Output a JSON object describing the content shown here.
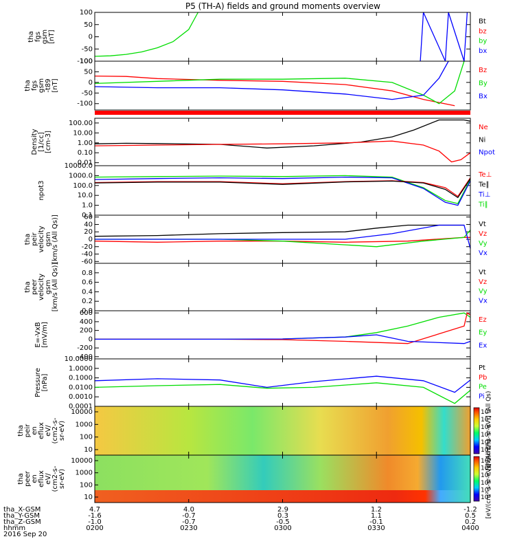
{
  "title": "P5 (TH-A) fields and ground moments overview",
  "time_axis": {
    "rows": [
      {
        "label": "tha_X-GSM",
        "values": [
          "4.7",
          "4.0",
          "2.9",
          "1.2",
          "-1.2"
        ]
      },
      {
        "label": "tha_Y-GSM",
        "values": [
          "-1.6",
          "-0.7",
          "0.3",
          "1.1",
          "0.5"
        ]
      },
      {
        "label": "tha_Z-GSM",
        "values": [
          "-1.0",
          "-0.7",
          "-0.5",
          "-0.1",
          "0.2"
        ]
      },
      {
        "label": "hhmm",
        "values": [
          "0200",
          "0230",
          "0300",
          "0330",
          "0400"
        ]
      }
    ],
    "date": "2016 Sep 20"
  },
  "chart_data": [
    {
      "type": "line",
      "ylabel": [
        "tha",
        "fgs",
        "gsm",
        "[nT]"
      ],
      "yticks": [
        "100",
        "50",
        "0",
        "-50",
        "-100"
      ],
      "ylim": [
        -100,
        100
      ],
      "legend": [
        {
          "label": "Bt",
          "color": "#000000"
        },
        {
          "label": "bz",
          "color": "#ff0000"
        },
        {
          "label": "by",
          "color": "#00dd00"
        },
        {
          "label": "bx",
          "color": "#0000ff"
        }
      ],
      "series": [
        {
          "name": "by",
          "x": [
            "02:00",
            "02:05",
            "02:10",
            "02:15",
            "02:20",
            "02:25",
            "02:30",
            "02:33"
          ],
          "values": [
            -80,
            -78,
            -72,
            -62,
            -45,
            -20,
            30,
            100
          ]
        },
        {
          "name": "bx",
          "x": [
            "03:44",
            "03:45",
            "03:52",
            "03:53",
            "03:58",
            "03:59"
          ],
          "values": [
            -100,
            100,
            -100,
            100,
            -100,
            100
          ]
        }
      ]
    },
    {
      "type": "line",
      "ylabel": [
        "tha",
        "fgs",
        "gsm",
        "-t89",
        "[nT]"
      ],
      "yticks": [
        "100",
        "50",
        "0",
        "-50",
        "-100"
      ],
      "ylim": [
        -130,
        100
      ],
      "legend": [
        {
          "label": "Bz",
          "color": "#ff0000"
        },
        {
          "label": "By",
          "color": "#00dd00"
        },
        {
          "label": "Bx",
          "color": "#0000ff"
        }
      ],
      "series": [
        {
          "name": "Bz",
          "x": [
            "02:00",
            "02:10",
            "02:20",
            "02:40",
            "03:00",
            "03:20",
            "03:35",
            "03:45",
            "03:55"
          ],
          "values": [
            30,
            28,
            18,
            10,
            5,
            -10,
            -40,
            -80,
            -110
          ]
        },
        {
          "name": "By",
          "x": [
            "02:00",
            "02:20",
            "02:40",
            "03:00",
            "03:20",
            "03:35",
            "03:45",
            "03:50",
            "03:55",
            "03:58"
          ],
          "values": [
            -5,
            5,
            15,
            15,
            20,
            0,
            -60,
            -100,
            -40,
            100
          ]
        },
        {
          "name": "Bx",
          "x": [
            "02:00",
            "02:20",
            "02:40",
            "03:00",
            "03:20",
            "03:35",
            "03:45",
            "03:50",
            "03:53"
          ],
          "values": [
            -20,
            -25,
            -25,
            -35,
            -55,
            -80,
            -60,
            20,
            100
          ]
        }
      ]
    },
    {
      "type": "line",
      "scale": "log",
      "ylabel": [
        "Density",
        "[1/cc]",
        "[cm-3]"
      ],
      "yticks": [
        "100.00",
        "10.00",
        "1.00",
        "0.10",
        "0.01"
      ],
      "ylim": [
        0.005,
        300
      ],
      "legend": [
        {
          "label": "Ne",
          "color": "#ff0000"
        },
        {
          "label": "Ni",
          "color": "#000000"
        },
        {
          "label": "Npot",
          "color": "#0000ff"
        }
      ],
      "series": [
        {
          "name": "Ni",
          "x": [
            "02:00",
            "02:10",
            "02:20",
            "02:40",
            "02:55",
            "03:10",
            "03:25",
            "03:35",
            "03:42",
            "03:50",
            "03:58",
            "04:00"
          ],
          "values": [
            0.8,
            0.9,
            0.85,
            0.7,
            0.3,
            0.5,
            1.2,
            4,
            20,
            200,
            200,
            150
          ]
        },
        {
          "name": "Ne",
          "x": [
            "02:00",
            "02:20",
            "02:40",
            "03:00",
            "03:20",
            "03:35",
            "03:45",
            "03:50",
            "03:54",
            "03:57",
            "04:00"
          ],
          "values": [
            0.5,
            0.6,
            0.7,
            0.8,
            1.0,
            1.5,
            0.6,
            0.15,
            0.012,
            0.02,
            0.1
          ]
        }
      ]
    },
    {
      "type": "line",
      "scale": "log",
      "ylabel": [
        "npot3"
      ],
      "yticks": [
        "10000.0",
        "1000.0",
        "100.0",
        "10.0",
        "1.0",
        "0.1"
      ],
      "ylim": [
        0.1,
        10000
      ],
      "legend": [
        {
          "label": "Te⊥",
          "color": "#ff0000"
        },
        {
          "label": "Te∥",
          "color": "#000000"
        },
        {
          "label": "Ti⊥",
          "color": "#0000ff"
        },
        {
          "label": "Ti∥",
          "color": "#00dd00"
        }
      ],
      "series": [
        {
          "name": "Ti∥",
          "x": [
            "02:00",
            "02:20",
            "02:40",
            "03:00",
            "03:20",
            "03:35",
            "03:45",
            "03:52",
            "03:56",
            "04:00"
          ],
          "values": [
            700,
            800,
            900,
            800,
            1000,
            700,
            60,
            3,
            1.5,
            400
          ]
        },
        {
          "name": "Ti⊥",
          "x": [
            "02:00",
            "02:20",
            "02:40",
            "03:00",
            "03:20",
            "03:35",
            "03:45",
            "03:52",
            "03:56",
            "04:00"
          ],
          "values": [
            400,
            500,
            600,
            500,
            700,
            600,
            50,
            2,
            1,
            300
          ]
        },
        {
          "name": "Te⊥",
          "x": [
            "02:00",
            "02:20",
            "02:40",
            "03:00",
            "03:20",
            "03:35",
            "03:45",
            "03:52",
            "03:56",
            "04:00"
          ],
          "values": [
            200,
            250,
            250,
            150,
            250,
            300,
            200,
            60,
            8,
            600
          ]
        },
        {
          "name": "Te∥",
          "x": [
            "02:00",
            "02:20",
            "02:40",
            "03:00",
            "03:20",
            "03:35",
            "03:45",
            "03:52",
            "03:56",
            "04:00"
          ],
          "values": [
            180,
            220,
            220,
            130,
            230,
            280,
            180,
            40,
            6,
            500
          ]
        }
      ]
    },
    {
      "type": "line",
      "ylabel": [
        "tha",
        "peir",
        "velocity",
        "gsm",
        "[km/s (All Qs)]"
      ],
      "yticks": [
        "60",
        "40",
        "20",
        "0",
        "-20",
        "-40",
        "-60"
      ],
      "ylim": [
        -65,
        65
      ],
      "legend": [
        {
          "label": "Vt",
          "color": "#000000"
        },
        {
          "label": "Vz",
          "color": "#ff0000"
        },
        {
          "label": "Vy",
          "color": "#00dd00"
        },
        {
          "label": "Vx",
          "color": "#0000ff"
        }
      ],
      "series": [
        {
          "name": "Vt",
          "x": [
            "02:00",
            "02:20",
            "02:40",
            "03:00",
            "03:20",
            "03:30",
            "03:40",
            "03:58"
          ],
          "values": [
            8,
            10,
            15,
            18,
            20,
            30,
            38,
            38
          ]
        },
        {
          "name": "Vz",
          "x": [
            "02:00",
            "02:20",
            "02:40",
            "03:00",
            "03:20",
            "03:40",
            "03:58",
            "04:00"
          ],
          "values": [
            -5,
            -8,
            -5,
            -5,
            -8,
            -5,
            5,
            5
          ]
        },
        {
          "name": "Vy",
          "x": [
            "02:00",
            "02:20",
            "02:40",
            "03:00",
            "03:20",
            "03:30",
            "03:45",
            "03:58",
            "04:00"
          ],
          "values": [
            0,
            0,
            0,
            -5,
            -15,
            -20,
            -5,
            5,
            25
          ]
        },
        {
          "name": "Vx",
          "x": [
            "02:00",
            "02:20",
            "02:40",
            "03:00",
            "03:20",
            "03:35",
            "03:50",
            "03:58",
            "04:00"
          ],
          "values": [
            0,
            0,
            0,
            0,
            0,
            15,
            38,
            38,
            -25
          ]
        }
      ]
    },
    {
      "type": "line",
      "ylabel": [
        "tha",
        "peer",
        "velocity",
        "gsm",
        "[km/s (All Qs)]"
      ],
      "yticks": [
        "0.8",
        "0.6",
        "0.4",
        "0.2",
        "0.0"
      ],
      "ylim": [
        0,
        1
      ],
      "legend": [
        {
          "label": "Vt",
          "color": "#000000"
        },
        {
          "label": "Vz",
          "color": "#ff0000"
        },
        {
          "label": "Vy",
          "color": "#00dd00"
        },
        {
          "label": "Vx",
          "color": "#0000ff"
        }
      ],
      "series": []
    },
    {
      "type": "line",
      "ylabel": [
        "E=-VxB",
        "[mV/m]"
      ],
      "yticks": [
        "600",
        "400",
        "200",
        "0",
        "-200",
        "-400"
      ],
      "ylim": [
        -450,
        650
      ],
      "legend": [
        {
          "label": "Ez",
          "color": "#ff0000"
        },
        {
          "label": "Ey",
          "color": "#00dd00"
        },
        {
          "label": "Ex",
          "color": "#0000ff"
        }
      ],
      "series": [
        {
          "name": "Ey",
          "x": [
            "02:00",
            "02:40",
            "03:00",
            "03:20",
            "03:30",
            "03:40",
            "03:50",
            "03:58",
            "04:00"
          ],
          "values": [
            0,
            0,
            5,
            50,
            150,
            300,
            500,
            600,
            500
          ]
        },
        {
          "name": "Ez",
          "x": [
            "02:00",
            "02:40",
            "03:00",
            "03:20",
            "03:40",
            "03:58",
            "03:59",
            "04:00"
          ],
          "values": [
            0,
            0,
            -10,
            -50,
            -100,
            300,
            600,
            550
          ]
        },
        {
          "name": "Ex",
          "x": [
            "02:00",
            "02:40",
            "03:00",
            "03:20",
            "03:30",
            "03:40",
            "03:58",
            "04:00"
          ],
          "values": [
            0,
            0,
            5,
            50,
            100,
            -50,
            -100,
            -50
          ]
        }
      ]
    },
    {
      "type": "line",
      "scale": "log",
      "ylabel": [
        "Pressure",
        "[nPa]"
      ],
      "yticks": [
        "10.0000",
        "1.0000",
        "0.1000",
        "0.0100",
        "0.0010",
        "0.0001"
      ],
      "ylim": [
        0.0001,
        10
      ],
      "legend": [
        {
          "label": "Pt",
          "color": "#000000"
        },
        {
          "label": "Pb",
          "color": "#ff0000"
        },
        {
          "label": "Pe",
          "color": "#00dd00"
        },
        {
          "label": "Pi",
          "color": "#0000ff"
        }
      ],
      "series": [
        {
          "name": "Pi",
          "x": [
            "02:00",
            "02:20",
            "02:40",
            "02:55",
            "03:10",
            "03:30",
            "03:45",
            "03:55",
            "04:00"
          ],
          "values": [
            0.05,
            0.08,
            0.06,
            0.01,
            0.04,
            0.15,
            0.05,
            0.003,
            0.06
          ]
        },
        {
          "name": "Pe",
          "x": [
            "02:00",
            "02:20",
            "02:40",
            "02:55",
            "03:10",
            "03:30",
            "03:45",
            "03:55",
            "04:00"
          ],
          "values": [
            0.01,
            0.015,
            0.02,
            0.008,
            0.01,
            0.03,
            0.01,
            0.0002,
            0.005
          ]
        }
      ]
    },
    {
      "type": "heatmap",
      "ylabel": [
        "tha",
        "peir",
        "en",
        "eflux",
        "eV/",
        "(cm2-s-",
        "sr-eV)"
      ],
      "yticks": [
        "10000",
        "1000",
        "100",
        "10"
      ],
      "colorbar": {
        "ticks": [
          "10⁸",
          "10⁷",
          "10⁶",
          "10⁵",
          "10⁴",
          "10³"
        ],
        "label": "[eV/(cm²-s-sr-eV)] (All Qs)"
      }
    },
    {
      "type": "heatmap",
      "ylabel": [
        "tha",
        "peer",
        "en",
        "eflux",
        "eV/",
        "(cm2-s-",
        "sr-eV)"
      ],
      "yticks": [
        "10000",
        "1000",
        "100",
        "10"
      ],
      "colorbar": {
        "ticks": [
          "10⁹",
          "10⁸",
          "10⁷",
          "10⁶",
          "10⁵",
          "10⁴"
        ],
        "label": "[eV/(cm²-s-sr-eV)] (All Qs)"
      }
    }
  ]
}
